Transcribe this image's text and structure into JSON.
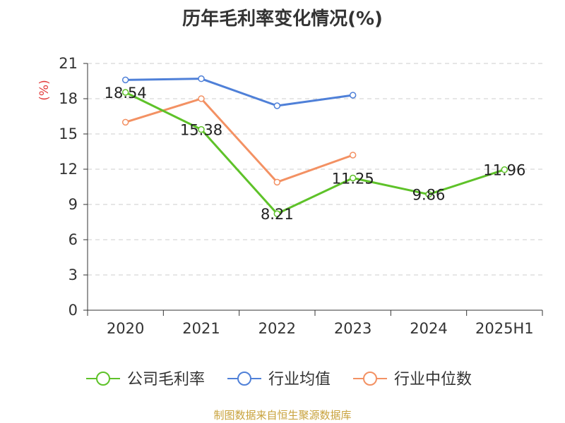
{
  "chart_data": {
    "type": "line",
    "title": "历年毛利率变化情况(%)",
    "ylabel": "(%)",
    "categories": [
      "2020",
      "2021",
      "2022",
      "2023",
      "2024",
      "2025H1"
    ],
    "ylim": [
      0,
      21
    ],
    "yticks": [
      0,
      3,
      6,
      9,
      12,
      15,
      18,
      21
    ],
    "grid": true,
    "legend_position": "bottom",
    "series": [
      {
        "name": "公司毛利率",
        "color": "#5ec229",
        "values": [
          18.54,
          15.38,
          8.21,
          11.25,
          9.86,
          11.96
        ],
        "labels": [
          "18.54",
          "15.38",
          "8.21",
          "11.25",
          "9.86",
          "11.96"
        ]
      },
      {
        "name": "行业均值",
        "color": "#4f80d8",
        "values": [
          19.6,
          19.7,
          17.4,
          18.3,
          null,
          null
        ]
      },
      {
        "name": "行业中位数",
        "color": "#f39163",
        "values": [
          16.0,
          18.0,
          10.9,
          13.2,
          null,
          null
        ]
      }
    ]
  },
  "source": {
    "text": "制图数据来自恒生聚源数据库",
    "color": "#c8a23c"
  },
  "colors": {
    "ylabel": "#e23c3c",
    "grid": "#cccccc",
    "axis": "#333333"
  }
}
